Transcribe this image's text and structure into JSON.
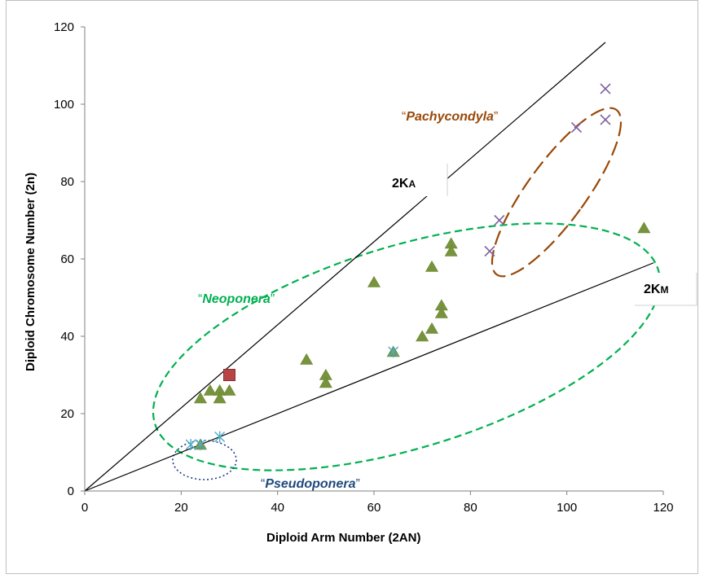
{
  "chart_data": {
    "type": "scatter",
    "title": "",
    "xlabel": "Diploid Arm Number (2AN)",
    "ylabel": "Diploid Chromosome Number (2n)",
    "xlim": [
      0,
      120
    ],
    "ylim": [
      0,
      120
    ],
    "x_ticks": [
      "0",
      "20",
      "40",
      "60",
      "80",
      "100",
      "120"
    ],
    "y_ticks": [
      "0",
      "20",
      "40",
      "60",
      "80",
      "100",
      "120"
    ],
    "grid": false,
    "legend": "none",
    "series": [
      {
        "marker": "triangle",
        "color": "#77933c",
        "points": [
          [
            24,
            24
          ],
          [
            26,
            26
          ],
          [
            28,
            26
          ],
          [
            28,
            24
          ],
          [
            30,
            26
          ],
          [
            46,
            34
          ],
          [
            50,
            30
          ],
          [
            50,
            28
          ],
          [
            60,
            54
          ],
          [
            64,
            36
          ],
          [
            70,
            40
          ],
          [
            72,
            42
          ],
          [
            72,
            58
          ],
          [
            74,
            48
          ],
          [
            74,
            46
          ],
          [
            76,
            64
          ],
          [
            76,
            62
          ],
          [
            116,
            68
          ],
          [
            24,
            12
          ]
        ]
      },
      {
        "marker": "square",
        "color": "#b84545",
        "points": [
          [
            30,
            30
          ]
        ]
      },
      {
        "marker": "x",
        "color": "#8064a2",
        "points": [
          [
            84,
            62
          ],
          [
            86,
            70
          ],
          [
            102,
            94
          ],
          [
            108,
            96
          ],
          [
            108,
            104
          ]
        ]
      },
      {
        "marker": "asterisk",
        "color": "#4bacc6",
        "points": [
          [
            22,
            12
          ],
          [
            24,
            12
          ],
          [
            28,
            14
          ],
          [
            64,
            36
          ]
        ]
      }
    ],
    "reference_lines": [
      {
        "label_main": "2K",
        "label_sub": "A",
        "from": [
          0,
          0
        ],
        "to": [
          108,
          116
        ]
      },
      {
        "label_main": "2K",
        "label_sub": "M",
        "from": [
          0,
          0
        ],
        "to": [
          118,
          59
        ]
      }
    ],
    "group_labels": [
      {
        "open": "“",
        "name": "Pachycondyla",
        "close": "”",
        "color": "#984807"
      },
      {
        "open": "“",
        "name": "Neoponera",
        "close": "”",
        "color": "#00b050"
      },
      {
        "open": "“",
        "name": "Pseudoponera",
        "close": "”",
        "color": "#1f497d"
      }
    ],
    "ellipses": [
      {
        "color": "#984807",
        "style": "long-dash"
      },
      {
        "color": "#00b050",
        "style": "dash"
      },
      {
        "color": "#1f3c88",
        "style": "dot"
      }
    ]
  }
}
